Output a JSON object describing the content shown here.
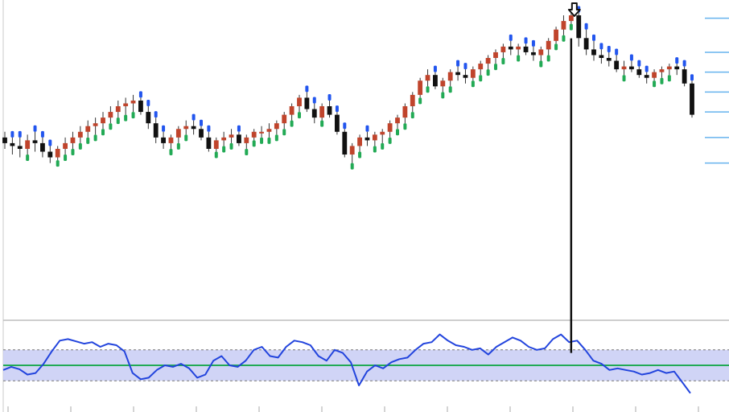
{
  "chart_data": [
    {
      "type": "candlestick",
      "title": "",
      "xlabel": "",
      "ylabel": "",
      "ylim": [
        0,
        100
      ],
      "colors": {
        "up": "#c0442c",
        "down": "#111111",
        "band_lower": "#22aa55",
        "band_upper": "#2255ee",
        "wick": "#333333",
        "level_line": "#66b3ee",
        "signal_arrow": "#111111"
      },
      "candles": [
        [
          55,
          57,
          51,
          53
        ],
        [
          53,
          55,
          49,
          52
        ],
        [
          52,
          55,
          48,
          51
        ],
        [
          51,
          56,
          49,
          54
        ],
        [
          54,
          57,
          50,
          53
        ],
        [
          53,
          55,
          48,
          50
        ],
        [
          50,
          52,
          46,
          48
        ],
        [
          48,
          52,
          47,
          51
        ],
        [
          51,
          55,
          49,
          53
        ],
        [
          53,
          57,
          51,
          55
        ],
        [
          55,
          59,
          53,
          57
        ],
        [
          57,
          61,
          55,
          59
        ],
        [
          59,
          62,
          56,
          60
        ],
        [
          60,
          64,
          58,
          62
        ],
        [
          62,
          66,
          60,
          64
        ],
        [
          64,
          68,
          62,
          66
        ],
        [
          66,
          69,
          63,
          67
        ],
        [
          67,
          70,
          64,
          68
        ],
        [
          68,
          69,
          63,
          64
        ],
        [
          64,
          66,
          58,
          60
        ],
        [
          60,
          62,
          53,
          55
        ],
        [
          55,
          57,
          51,
          53
        ],
        [
          53,
          56,
          51,
          55
        ],
        [
          55,
          59,
          53,
          58
        ],
        [
          58,
          61,
          56,
          59
        ],
        [
          59,
          61,
          56,
          58
        ],
        [
          58,
          59,
          54,
          55
        ],
        [
          55,
          57,
          50,
          51
        ],
        [
          51,
          55,
          50,
          54
        ],
        [
          54,
          57,
          52,
          55
        ],
        [
          55,
          58,
          53,
          56
        ],
        [
          56,
          57,
          52,
          53
        ],
        [
          53,
          56,
          51,
          55
        ],
        [
          55,
          58,
          54,
          57
        ],
        [
          57,
          59,
          55,
          57
        ],
        [
          57,
          60,
          55,
          58
        ],
        [
          58,
          61,
          56,
          60
        ],
        [
          60,
          64,
          58,
          63
        ],
        [
          63,
          67,
          61,
          66
        ],
        [
          66,
          70,
          64,
          69
        ],
        [
          69,
          71,
          64,
          65
        ],
        [
          65,
          67,
          60,
          62
        ],
        [
          62,
          67,
          61,
          66
        ],
        [
          66,
          68,
          62,
          63
        ],
        [
          63,
          64,
          56,
          57
        ],
        [
          57,
          58,
          48,
          49
        ],
        [
          49,
          53,
          46,
          52
        ],
        [
          52,
          56,
          50,
          55
        ],
        [
          55,
          57,
          52,
          54
        ],
        [
          54,
          57,
          52,
          56
        ],
        [
          56,
          58,
          53,
          57
        ],
        [
          57,
          61,
          55,
          60
        ],
        [
          60,
          63,
          58,
          62
        ],
        [
          62,
          67,
          60,
          66
        ],
        [
          66,
          71,
          64,
          70
        ],
        [
          70,
          76,
          69,
          75
        ],
        [
          75,
          79,
          73,
          77
        ],
        [
          77,
          78,
          72,
          73
        ],
        [
          73,
          76,
          71,
          75
        ],
        [
          75,
          79,
          73,
          78
        ],
        [
          78,
          80,
          75,
          77
        ],
        [
          77,
          79,
          74,
          76
        ],
        [
          76,
          80,
          75,
          79
        ],
        [
          79,
          82,
          77,
          81
        ],
        [
          81,
          84,
          79,
          83
        ],
        [
          83,
          86,
          81,
          85
        ],
        [
          85,
          88,
          83,
          87
        ],
        [
          87,
          89,
          84,
          86
        ],
        [
          86,
          88,
          84,
          87
        ],
        [
          87,
          88,
          84,
          85
        ],
        [
          85,
          87,
          82,
          84
        ],
        [
          84,
          87,
          82,
          86
        ],
        [
          86,
          90,
          84,
          89
        ],
        [
          89,
          94,
          88,
          93
        ],
        [
          93,
          98,
          91,
          96
        ],
        [
          96,
          100,
          95,
          98
        ],
        [
          98,
          99,
          87,
          90
        ],
        [
          90,
          93,
          84,
          86
        ],
        [
          86,
          89,
          82,
          84
        ],
        [
          84,
          86,
          81,
          83
        ],
        [
          83,
          85,
          80,
          82
        ],
        [
          82,
          84,
          78,
          79
        ],
        [
          79,
          82,
          77,
          80
        ],
        [
          80,
          82,
          78,
          79
        ],
        [
          79,
          80,
          76,
          77
        ],
        [
          77,
          78,
          74,
          76
        ],
        [
          76,
          79,
          75,
          78
        ],
        [
          78,
          80,
          76,
          79
        ],
        [
          79,
          81,
          77,
          80
        ],
        [
          80,
          81,
          77,
          79
        ],
        [
          79,
          80,
          73,
          74
        ],
        [
          74,
          75,
          62,
          63
        ]
      ],
      "level_lines": [
        97,
        85,
        78,
        71,
        64,
        55,
        46
      ],
      "signal": {
        "index": 75,
        "direction": "down"
      }
    },
    {
      "type": "line",
      "title": "",
      "ylim": [
        0,
        100
      ],
      "band": [
        30,
        70
      ],
      "midline": 50,
      "colors": {
        "line": "#2244dd",
        "band": "#c8cdf5",
        "midline": "#22aa55"
      },
      "series": [
        {
          "values": [
            44,
            48,
            45,
            38,
            40,
            52,
            68,
            82,
            84,
            81,
            78,
            80,
            74,
            78,
            76,
            68,
            40,
            32,
            34,
            44,
            50,
            48,
            52,
            46,
            34,
            38,
            56,
            62,
            50,
            48,
            56,
            70,
            74,
            62,
            60,
            74,
            82,
            80,
            76,
            62,
            56,
            70,
            66,
            54,
            24,
            42,
            50,
            46,
            54,
            58,
            60,
            70,
            78,
            80,
            90,
            82,
            76,
            74,
            70,
            72,
            64,
            74,
            80,
            86,
            82,
            74,
            70,
            72,
            84,
            90,
            80,
            82,
            70,
            56,
            52,
            44,
            46,
            44,
            42,
            38,
            40,
            44,
            40,
            42,
            28,
            14
          ]
        }
      ]
    }
  ]
}
